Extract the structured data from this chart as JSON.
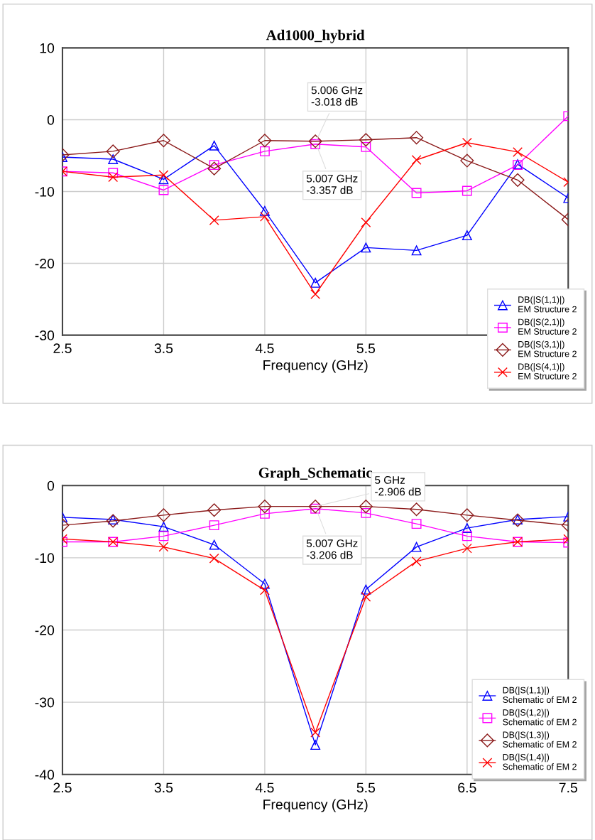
{
  "chart_data": [
    {
      "type": "line",
      "title": "Ad1000_hybrid",
      "xlabel": "Frequency (GHz)",
      "x": [
        2.5,
        3,
        3.5,
        4,
        4.5,
        5,
        5.5,
        6,
        6.5,
        7,
        7.5
      ],
      "xlim": [
        2.5,
        7.5
      ],
      "xticks": [
        2.5,
        3.5,
        4.5,
        5.5,
        {
          "value": 6.5,
          "label": null
        },
        {
          "value": 7.5,
          "label": null
        }
      ],
      "ylim": [
        -30,
        10
      ],
      "yticks": [
        -30,
        -20,
        -10,
        0,
        10
      ],
      "grid": true,
      "legend": "bottom right",
      "series": [
        {
          "name": "DB(|S(1,1)|)\nEM Structure 2",
          "color": "#0000ff",
          "marker": "triangle",
          "values": [
            -5.2,
            -5.5,
            -8.3,
            -3.6,
            -12.7,
            -22.7,
            -17.8,
            -18.2,
            -16.1,
            -6.2,
            -10.9
          ]
        },
        {
          "name": "DB(|S(2,1)|)\nEM Structure 2",
          "color": "#ff00ff",
          "marker": "square",
          "values": [
            -7.2,
            -7.4,
            -9.8,
            -6.3,
            -4.4,
            -3.4,
            -3.8,
            -10.2,
            -9.9,
            -6.3,
            0.5
          ]
        },
        {
          "name": "DB(|S(3,1)|)\nEM Structure 2",
          "color": "#8b1a1a",
          "marker": "diamond",
          "values": [
            -4.9,
            -4.4,
            -2.9,
            -6.8,
            -2.9,
            -3.0,
            -2.8,
            -2.5,
            -5.7,
            -8.4,
            -13.9
          ]
        },
        {
          "name": "DB(|S(4,1)|)\nEM Structure 2",
          "color": "#ff0000",
          "marker": "cross",
          "values": [
            -7.2,
            -8.0,
            -7.7,
            -14.0,
            -13.5,
            -24.3,
            -14.3,
            -5.6,
            -3.2,
            -4.5,
            -8.7
          ]
        }
      ],
      "annotations": [
        {
          "text": "5.006 GHz\n-3.018 dB",
          "x": 5.006,
          "y": -3.018
        },
        {
          "text": "5.007 GHz\n-3.357 dB",
          "x": 5.007,
          "y": -3.357
        }
      ]
    },
    {
      "type": "line",
      "title": "Graph_Schematic",
      "xlabel": "Frequency (GHz)",
      "x": [
        2.5,
        3,
        3.5,
        4,
        4.5,
        5,
        5.5,
        6,
        6.5,
        7,
        7.5
      ],
      "xlim": [
        2.5,
        7.5
      ],
      "xticks": [
        2.5,
        3.5,
        4.5,
        5.5,
        6.5,
        7.5
      ],
      "ylim": [
        -40,
        0
      ],
      "yticks": [
        -40,
        -30,
        -20,
        -10,
        0
      ],
      "grid": true,
      "legend": "bottom right",
      "series": [
        {
          "name": "DB(|S(1,1)|)\nSchematic of EM 2",
          "color": "#0000ff",
          "marker": "triangle",
          "values": [
            -4.4,
            -4.7,
            -5.7,
            -8.2,
            -13.6,
            -35.9,
            -14.4,
            -8.5,
            -5.9,
            -4.7,
            -4.3
          ]
        },
        {
          "name": "DB(|S(1,2)|)\nSchematic of EM 2",
          "color": "#ff00ff",
          "marker": "square",
          "values": [
            -7.8,
            -7.8,
            -7.0,
            -5.5,
            -3.9,
            -3.2,
            -3.8,
            -5.3,
            -7.0,
            -7.8,
            -7.9
          ]
        },
        {
          "name": "DB(|S(1,3)|)\nSchematic of EM 2",
          "color": "#8b1a1a",
          "marker": "diamond",
          "values": [
            -5.5,
            -4.9,
            -4.1,
            -3.4,
            -2.9,
            -2.9,
            -2.9,
            -3.3,
            -4.1,
            -4.8,
            -5.5
          ]
        },
        {
          "name": "DB(|S(1,4)|)\nSchematic of EM 2",
          "color": "#ff0000",
          "marker": "cross",
          "values": [
            -7.4,
            -7.8,
            -8.5,
            -10.1,
            -14.5,
            -34.2,
            -15.4,
            -10.5,
            -8.7,
            -7.8,
            -7.4
          ]
        }
      ],
      "annotations": [
        {
          "text": "5 GHz\n-2.906 dB",
          "x": 5,
          "y": -2.906
        },
        {
          "text": "5.007 GHz\n-3.206 dB",
          "x": 5.007,
          "y": -3.206
        }
      ]
    }
  ]
}
